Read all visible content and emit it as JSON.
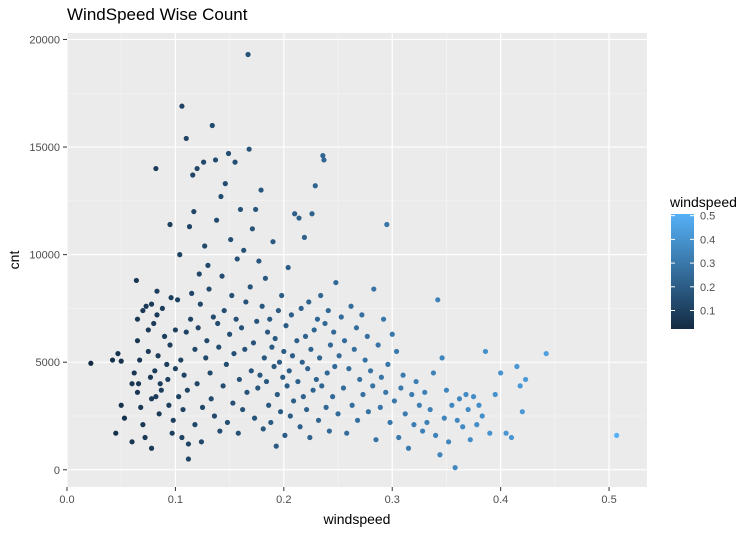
{
  "chart_data": {
    "type": "scatter",
    "title": "WindSpeed Wise Count",
    "xlabel": "windspeed",
    "ylabel": "cnt",
    "xlim": [
      0,
      0.535
    ],
    "ylim": [
      -800,
      20300
    ],
    "x_ticks": [
      0.0,
      0.1,
      0.2,
      0.3,
      0.4,
      0.5
    ],
    "x_tick_labels": [
      "0.0",
      "0.1",
      "0.2",
      "0.3",
      "0.4",
      "0.5"
    ],
    "y_ticks": [
      0,
      5000,
      10000,
      15000,
      20000
    ],
    "y_tick_labels": [
      "0",
      "5000",
      "10000",
      "15000",
      "20000"
    ],
    "grid": true,
    "background": "#EBEBEB",
    "color_scale": {
      "variable": "windspeed",
      "low_color": "#132B43",
      "high_color": "#56B1F7",
      "min": 0.022,
      "max": 0.507,
      "legend_title": "windspeed",
      "legend_ticks": [
        0.1,
        0.2,
        0.3,
        0.4,
        0.5
      ],
      "legend_tick_labels": [
        "0.1",
        "0.2",
        "0.3",
        "0.4",
        "0.5"
      ],
      "legend_position": "right"
    },
    "points": [
      [
        0.022,
        4950
      ],
      [
        0.042,
        5100
      ],
      [
        0.047,
        5400
      ],
      [
        0.05,
        5050
      ],
      [
        0.045,
        1700
      ],
      [
        0.05,
        3000
      ],
      [
        0.053,
        2400
      ],
      [
        0.06,
        4000
      ],
      [
        0.062,
        4500
      ],
      [
        0.06,
        1300
      ],
      [
        0.065,
        6000
      ],
      [
        0.065,
        7000
      ],
      [
        0.067,
        5100
      ],
      [
        0.065,
        3600
      ],
      [
        0.066,
        4000
      ],
      [
        0.068,
        2900
      ],
      [
        0.07,
        2100
      ],
      [
        0.072,
        1500
      ],
      [
        0.064,
        8800
      ],
      [
        0.07,
        7400
      ],
      [
        0.073,
        7600
      ],
      [
        0.075,
        6500
      ],
      [
        0.075,
        5500
      ],
      [
        0.077,
        4300
      ],
      [
        0.078,
        3300
      ],
      [
        0.078,
        1000
      ],
      [
        0.078,
        7700
      ],
      [
        0.08,
        6800
      ],
      [
        0.081,
        4600
      ],
      [
        0.082,
        3400
      ],
      [
        0.083,
        8300
      ],
      [
        0.083,
        7200
      ],
      [
        0.084,
        5300
      ],
      [
        0.085,
        2600
      ],
      [
        0.086,
        4000
      ],
      [
        0.087,
        3700
      ],
      [
        0.082,
        14000
      ],
      [
        0.088,
        7500
      ],
      [
        0.09,
        6200
      ],
      [
        0.092,
        4900
      ],
      [
        0.093,
        4200
      ],
      [
        0.094,
        3000
      ],
      [
        0.095,
        5800
      ],
      [
        0.095,
        11400
      ],
      [
        0.096,
        8000
      ],
      [
        0.097,
        1700
      ],
      [
        0.098,
        2300
      ],
      [
        0.1,
        4700
      ],
      [
        0.1,
        6500
      ],
      [
        0.102,
        7900
      ],
      [
        0.103,
        3400
      ],
      [
        0.104,
        10000
      ],
      [
        0.105,
        5100
      ],
      [
        0.106,
        1500
      ],
      [
        0.106,
        16900
      ],
      [
        0.107,
        2800
      ],
      [
        0.108,
        4400
      ],
      [
        0.11,
        15400
      ],
      [
        0.11,
        6400
      ],
      [
        0.111,
        3700
      ],
      [
        0.112,
        500
      ],
      [
        0.112,
        1200
      ],
      [
        0.113,
        11300
      ],
      [
        0.114,
        7000
      ],
      [
        0.115,
        8200
      ],
      [
        0.116,
        13700
      ],
      [
        0.117,
        12000
      ],
      [
        0.118,
        5600
      ],
      [
        0.118,
        2100
      ],
      [
        0.12,
        14000
      ],
      [
        0.12,
        4000
      ],
      [
        0.121,
        6600
      ],
      [
        0.122,
        9100
      ],
      [
        0.123,
        7700
      ],
      [
        0.124,
        1300
      ],
      [
        0.125,
        2900
      ],
      [
        0.126,
        14300
      ],
      [
        0.127,
        10400
      ],
      [
        0.128,
        5200
      ],
      [
        0.129,
        6000
      ],
      [
        0.13,
        9500
      ],
      [
        0.131,
        8400
      ],
      [
        0.132,
        4500
      ],
      [
        0.133,
        3300
      ],
      [
        0.134,
        16000
      ],
      [
        0.135,
        7100
      ],
      [
        0.136,
        2500
      ],
      [
        0.137,
        14400
      ],
      [
        0.138,
        11600
      ],
      [
        0.139,
        6800
      ],
      [
        0.14,
        5700
      ],
      [
        0.141,
        1800
      ],
      [
        0.142,
        12700
      ],
      [
        0.143,
        9000
      ],
      [
        0.144,
        3900
      ],
      [
        0.145,
        7400
      ],
      [
        0.146,
        13300
      ],
      [
        0.147,
        4900
      ],
      [
        0.148,
        2200
      ],
      [
        0.149,
        14700
      ],
      [
        0.15,
        6300
      ],
      [
        0.151,
        10700
      ],
      [
        0.152,
        8100
      ],
      [
        0.153,
        3100
      ],
      [
        0.154,
        5400
      ],
      [
        0.155,
        14300
      ],
      [
        0.156,
        7000
      ],
      [
        0.157,
        9800
      ],
      [
        0.158,
        1700
      ],
      [
        0.159,
        4200
      ],
      [
        0.16,
        12100
      ],
      [
        0.161,
        6600
      ],
      [
        0.162,
        2800
      ],
      [
        0.163,
        10200
      ],
      [
        0.164,
        5600
      ],
      [
        0.165,
        7800
      ],
      [
        0.166,
        3600
      ],
      [
        0.167,
        19300
      ],
      [
        0.168,
        14900
      ],
      [
        0.169,
        8500
      ],
      [
        0.17,
        4600
      ],
      [
        0.171,
        11200
      ],
      [
        0.172,
        5900
      ],
      [
        0.173,
        2400
      ],
      [
        0.174,
        12100
      ],
      [
        0.175,
        6900
      ],
      [
        0.176,
        3800
      ],
      [
        0.177,
        9700
      ],
      [
        0.178,
        4400
      ],
      [
        0.179,
        13000
      ],
      [
        0.18,
        7600
      ],
      [
        0.181,
        1900
      ],
      [
        0.182,
        5200
      ],
      [
        0.183,
        8900
      ],
      [
        0.184,
        4100
      ],
      [
        0.185,
        6400
      ],
      [
        0.186,
        3000
      ],
      [
        0.187,
        7000
      ],
      [
        0.188,
        2200
      ],
      [
        0.189,
        5700
      ],
      [
        0.19,
        10600
      ],
      [
        0.191,
        4800
      ],
      [
        0.192,
        6100
      ],
      [
        0.193,
        1100
      ],
      [
        0.194,
        3500
      ],
      [
        0.195,
        7400
      ],
      [
        0.196,
        5000
      ],
      [
        0.197,
        2700
      ],
      [
        0.198,
        8100
      ],
      [
        0.199,
        4300
      ],
      [
        0.2,
        5500
      ],
      [
        0.201,
        1600
      ],
      [
        0.202,
        6700
      ],
      [
        0.203,
        3900
      ],
      [
        0.204,
        9400
      ],
      [
        0.205,
        4600
      ],
      [
        0.206,
        2500
      ],
      [
        0.207,
        7200
      ],
      [
        0.208,
        5300
      ],
      [
        0.209,
        3200
      ],
      [
        0.21,
        11900
      ],
      [
        0.212,
        6000
      ],
      [
        0.213,
        4100
      ],
      [
        0.214,
        11700
      ],
      [
        0.215,
        2000
      ],
      [
        0.216,
        7500
      ],
      [
        0.217,
        5000
      ],
      [
        0.218,
        3400
      ],
      [
        0.219,
        10800
      ],
      [
        0.22,
        6200
      ],
      [
        0.221,
        2800
      ],
      [
        0.222,
        4700
      ],
      [
        0.223,
        7800
      ],
      [
        0.224,
        1500
      ],
      [
        0.225,
        5600
      ],
      [
        0.226,
        11900
      ],
      [
        0.227,
        3700
      ],
      [
        0.228,
        6500
      ],
      [
        0.229,
        13200
      ],
      [
        0.23,
        4200
      ],
      [
        0.231,
        7000
      ],
      [
        0.232,
        2300
      ],
      [
        0.233,
        5200
      ],
      [
        0.234,
        8100
      ],
      [
        0.235,
        3900
      ],
      [
        0.236,
        14600
      ],
      [
        0.237,
        14400
      ],
      [
        0.238,
        6800
      ],
      [
        0.239,
        2900
      ],
      [
        0.24,
        4500
      ],
      [
        0.241,
        7400
      ],
      [
        0.242,
        1800
      ],
      [
        0.243,
        5800
      ],
      [
        0.245,
        3400
      ],
      [
        0.246,
        6400
      ],
      [
        0.247,
        4800
      ],
      [
        0.248,
        8700
      ],
      [
        0.25,
        2600
      ],
      [
        0.251,
        5300
      ],
      [
        0.253,
        7100
      ],
      [
        0.255,
        3800
      ],
      [
        0.256,
        6000
      ],
      [
        0.258,
        1700
      ],
      [
        0.26,
        4700
      ],
      [
        0.262,
        7600
      ],
      [
        0.263,
        3000
      ],
      [
        0.265,
        5600
      ],
      [
        0.267,
        6600
      ],
      [
        0.268,
        2300
      ],
      [
        0.27,
        4200
      ],
      [
        0.272,
        7200
      ],
      [
        0.273,
        3500
      ],
      [
        0.275,
        5100
      ],
      [
        0.277,
        6200
      ],
      [
        0.278,
        2700
      ],
      [
        0.28,
        4600
      ],
      [
        0.282,
        3900
      ],
      [
        0.283,
        8400
      ],
      [
        0.285,
        1400
      ],
      [
        0.287,
        5800
      ],
      [
        0.289,
        2900
      ],
      [
        0.29,
        4300
      ],
      [
        0.292,
        7000
      ],
      [
        0.294,
        3600
      ],
      [
        0.295,
        11400
      ],
      [
        0.296,
        4900
      ],
      [
        0.298,
        2200
      ],
      [
        0.3,
        6300
      ],
      [
        0.302,
        3200
      ],
      [
        0.304,
        5500
      ],
      [
        0.306,
        1500
      ],
      [
        0.308,
        3800
      ],
      [
        0.31,
        4400
      ],
      [
        0.312,
        2600
      ],
      [
        0.315,
        1000
      ],
      [
        0.318,
        3500
      ],
      [
        0.32,
        2100
      ],
      [
        0.322,
        4100
      ],
      [
        0.325,
        3000
      ],
      [
        0.328,
        1800
      ],
      [
        0.33,
        3600
      ],
      [
        0.332,
        2200
      ],
      [
        0.335,
        2800
      ],
      [
        0.338,
        4500
      ],
      [
        0.34,
        1600
      ],
      [
        0.342,
        7900
      ],
      [
        0.344,
        700
      ],
      [
        0.346,
        5200
      ],
      [
        0.348,
        2400
      ],
      [
        0.35,
        3700
      ],
      [
        0.352,
        1300
      ],
      [
        0.355,
        3000
      ],
      [
        0.358,
        100
      ],
      [
        0.36,
        2300
      ],
      [
        0.362,
        3300
      ],
      [
        0.365,
        2000
      ],
      [
        0.368,
        3500
      ],
      [
        0.37,
        2800
      ],
      [
        0.372,
        1400
      ],
      [
        0.375,
        3400
      ],
      [
        0.378,
        2100
      ],
      [
        0.38,
        3000
      ],
      [
        0.383,
        2500
      ],
      [
        0.386,
        5500
      ],
      [
        0.39,
        1700
      ],
      [
        0.395,
        3500
      ],
      [
        0.4,
        4500
      ],
      [
        0.405,
        1700
      ],
      [
        0.41,
        1500
      ],
      [
        0.415,
        4800
      ],
      [
        0.418,
        3900
      ],
      [
        0.42,
        2700
      ],
      [
        0.423,
        4200
      ],
      [
        0.442,
        5400
      ],
      [
        0.507,
        1600
      ]
    ]
  }
}
